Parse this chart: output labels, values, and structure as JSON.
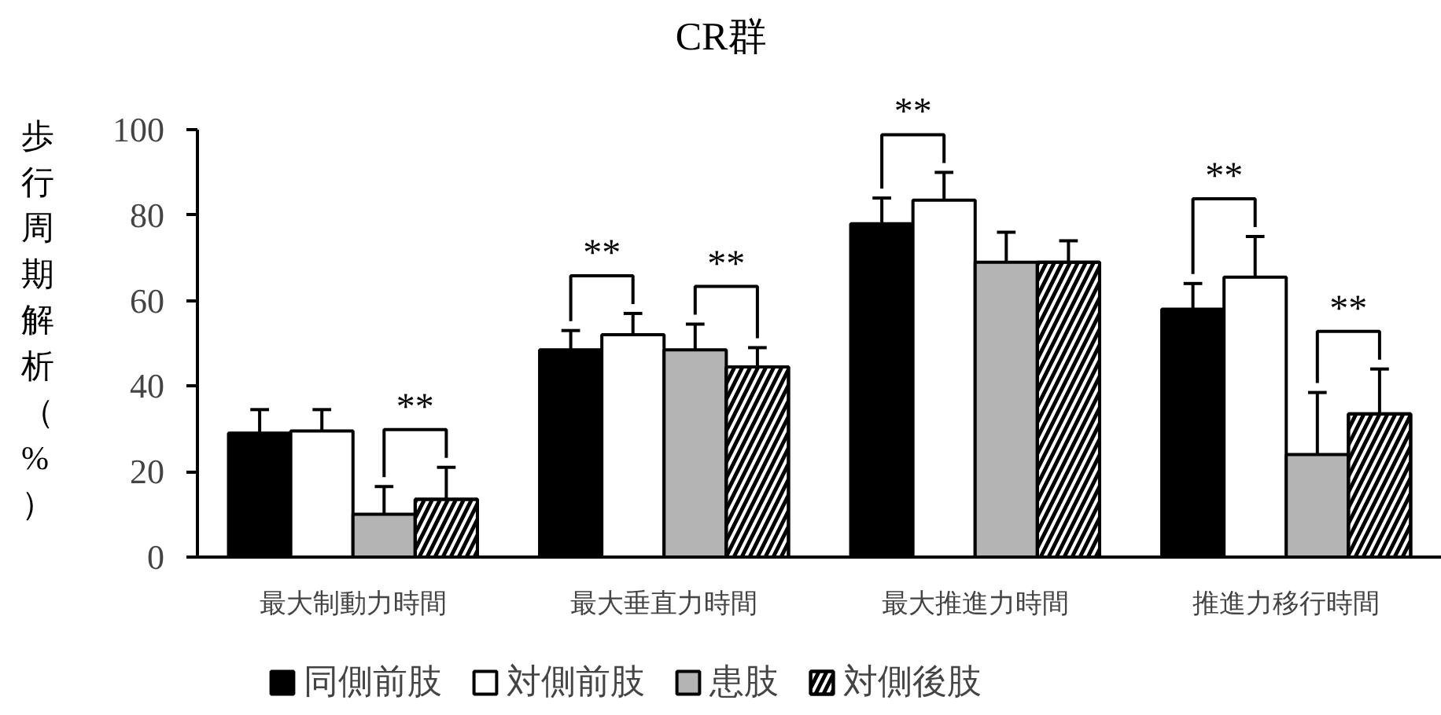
{
  "chart_data": {
    "type": "bar",
    "title": "CR群",
    "ylabel": "歩行周期解析（%）",
    "categories": [
      "最大制動力時間",
      "最大垂直力時間",
      "最大推進力時間",
      "推進力移行時間"
    ],
    "ylim": [
      0,
      100
    ],
    "yticks": [
      0,
      20,
      40,
      60,
      80,
      100
    ],
    "grid": false,
    "legend": "bottom",
    "series": [
      {
        "name": "同側前肢",
        "color": "#000000",
        "values": [
          29,
          48.5,
          78,
          58
        ],
        "errors": [
          [
            29,
            34.5
          ],
          [
            48.5,
            53
          ],
          [
            78,
            84
          ],
          [
            58,
            64
          ]
        ]
      },
      {
        "name": "対側前肢",
        "color": "#ffffff",
        "values": [
          29.5,
          52,
          83.5,
          65.5
        ],
        "errors": [
          [
            29.5,
            34.5
          ],
          [
            52,
            57
          ],
          [
            83.5,
            90
          ],
          [
            65.5,
            75
          ]
        ]
      },
      {
        "name": "患肢",
        "color": "#b4b4b4",
        "values": [
          10,
          48.5,
          69,
          24
        ],
        "errors": [
          [
            10,
            16.5
          ],
          [
            48.5,
            54.5
          ],
          [
            69,
            76
          ],
          [
            24,
            38.5
          ]
        ]
      },
      {
        "name": "対側後肢",
        "color": "#ffffff",
        "values": [
          13.5,
          44.5,
          69,
          33.5
        ],
        "errors": [
          [
            13.5,
            21
          ],
          [
            44.5,
            49
          ],
          [
            69,
            74
          ],
          [
            33.5,
            44
          ]
        ]
      }
    ],
    "annotations": [
      "**",
      "**",
      "**",
      "**",
      "**",
      "**"
    ]
  }
}
